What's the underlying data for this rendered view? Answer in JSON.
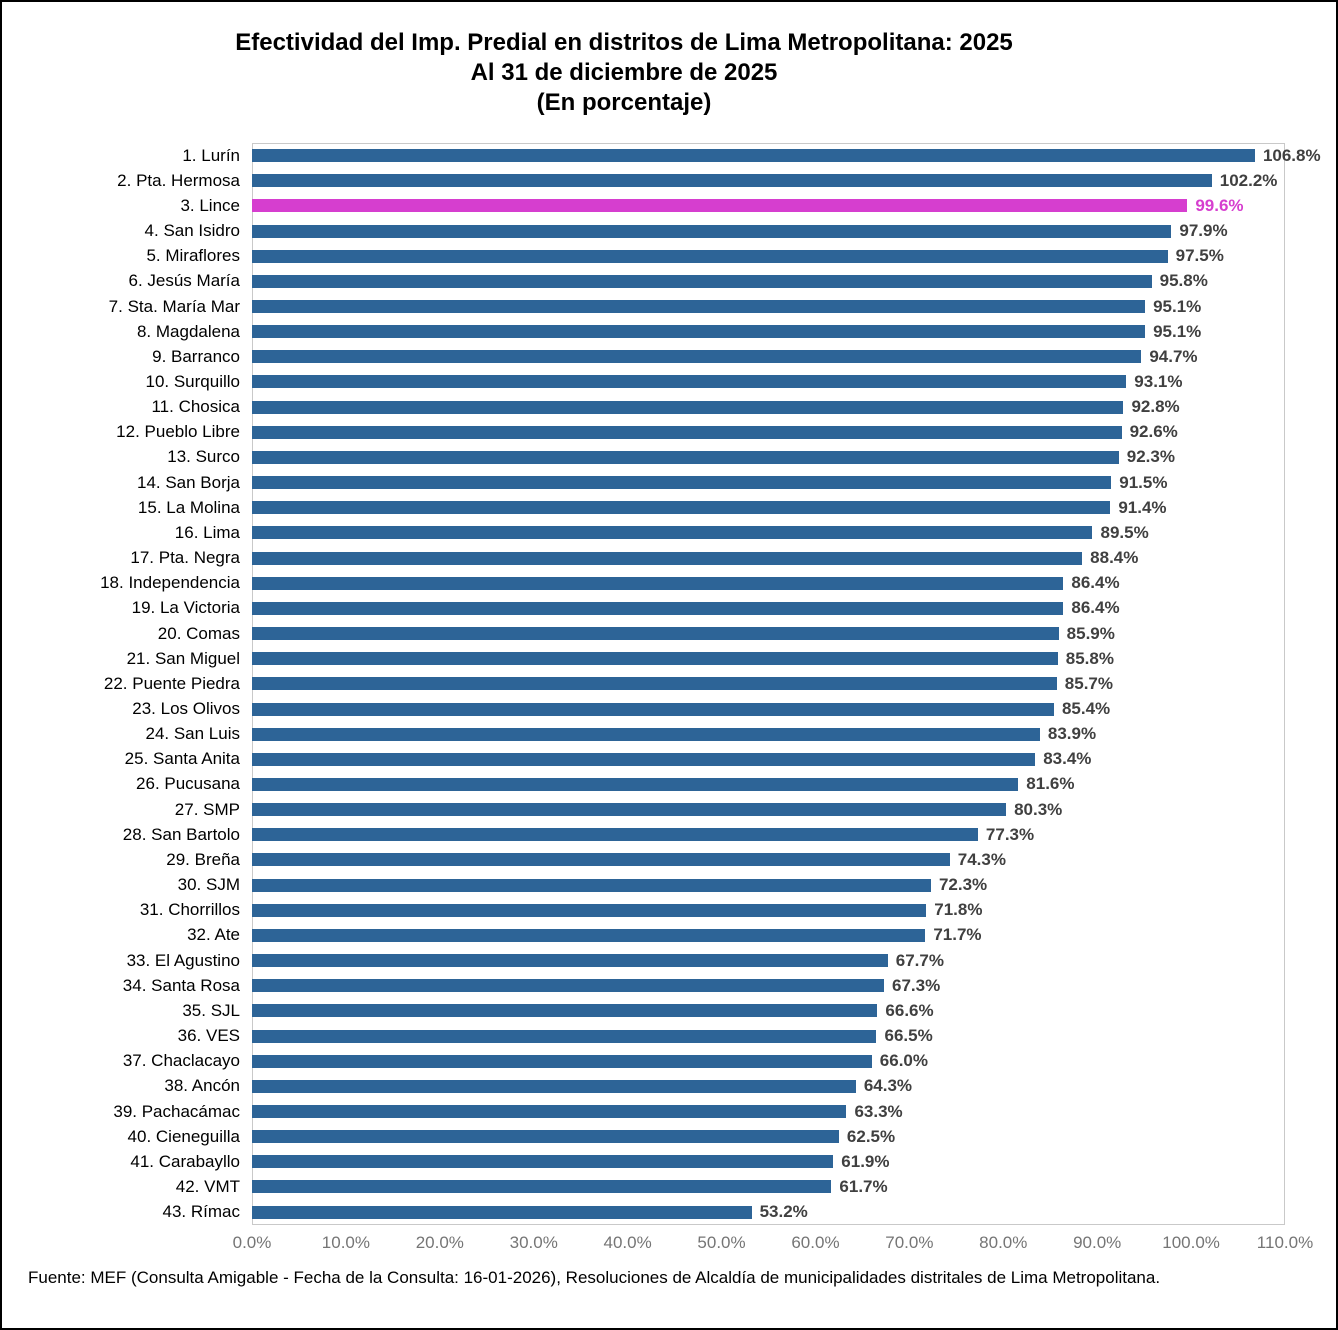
{
  "page": {
    "title_line1": "Efectividad del Imp. Predial en distritos de Lima Metropolitana: 2025",
    "title_line2": "Al 31 de diciembre de 2025",
    "title_line3": "(En porcentaje)",
    "footer": "Fuente: MEF (Consulta Amigable - Fecha de la Consulta: 16-01-2026), Resoluciones de Alcaldía de municipalidades distritales de Lima Metropolitana."
  },
  "chart_data": {
    "type": "bar",
    "orientation": "horizontal",
    "title": "Efectividad del Imp. Predial en distritos de Lima Metropolitana: 2025",
    "subtitle": "Al 31 de diciembre de 2025",
    "units_note": "(En porcentaje)",
    "grid": false,
    "legend": false,
    "x_axis": {
      "min": 0,
      "max": 110,
      "tick_labels": [
        "0.0%",
        "10.0%",
        "20.0%",
        "30.0%",
        "40.0%",
        "50.0%",
        "60.0%",
        "70.0%",
        "80.0%",
        "90.0%",
        "100.0%",
        "110.0%"
      ]
    },
    "categories": [
      "1. Lurín",
      "2. Pta. Hermosa",
      "3. Lince",
      "4. San Isidro",
      "5. Miraflores",
      "6. Jesús María",
      "7. Sta. María Mar",
      "8. Magdalena",
      "9. Barranco",
      "10. Surquillo",
      "11. Chosica",
      "12. Pueblo Libre",
      "13. Surco",
      "14. San Borja",
      "15. La Molina",
      "16. Lima",
      "17. Pta. Negra",
      "18. Independencia",
      "19. La Victoria",
      "20. Comas",
      "21. San Miguel",
      "22. Puente Piedra",
      "23. Los Olivos",
      "24. San Luis",
      "25. Santa Anita",
      "26. Pucusana",
      "27. SMP",
      "28. San Bartolo",
      "29. Breña",
      "30. SJM",
      "31. Chorrillos",
      "32. Ate",
      "33. El Agustino",
      "34. Santa Rosa",
      "35. SJL",
      "36. VES",
      "37. Chaclacayo",
      "38. Ancón",
      "39. Pachacámac",
      "40. Cieneguilla",
      "41. Carabayllo",
      "42. VMT",
      "43. Rímac"
    ],
    "values": [
      106.8,
      102.2,
      99.6,
      97.9,
      97.5,
      95.8,
      95.1,
      95.1,
      94.7,
      93.1,
      92.8,
      92.6,
      92.3,
      91.5,
      91.4,
      89.5,
      88.4,
      86.4,
      86.4,
      85.9,
      85.8,
      85.7,
      85.4,
      83.9,
      83.4,
      81.6,
      80.3,
      77.3,
      74.3,
      72.3,
      71.8,
      71.7,
      67.7,
      67.3,
      66.6,
      66.5,
      66.0,
      64.3,
      63.3,
      62.5,
      61.9,
      61.7,
      53.2
    ],
    "highlight_index": 2,
    "highlight_category": "3. Lince",
    "colors": {
      "bar": "#2d6497",
      "highlight": "#d63ecf",
      "value_label": "#404040",
      "axis_label": "#757575",
      "plot_border": "#c9c9c9"
    }
  }
}
